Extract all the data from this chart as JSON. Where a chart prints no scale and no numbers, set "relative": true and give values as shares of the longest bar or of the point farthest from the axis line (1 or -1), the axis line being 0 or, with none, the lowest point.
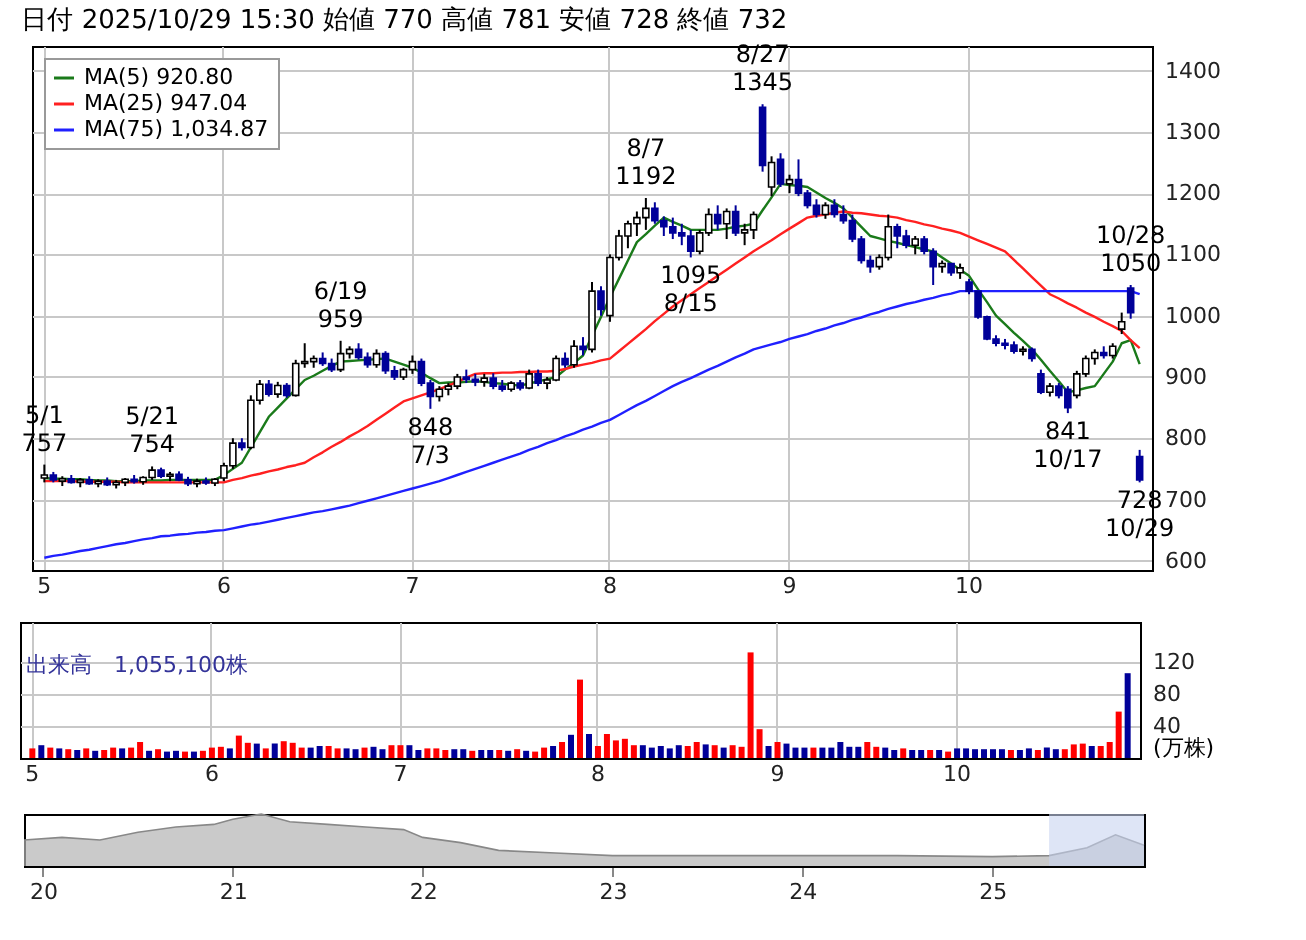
{
  "chart_data": [
    {
      "type": "candlestick",
      "title": "日付 2025/10/29 15:30 始値 770 高値 781 安値 728 終値 732",
      "grid": true,
      "legend": "top left",
      "categories": [
        "5",
        null,
        null,
        null,
        null,
        null,
        null,
        null,
        null,
        null,
        null,
        null,
        null,
        null,
        null,
        null,
        null,
        null,
        null,
        null,
        "6",
        null,
        null,
        null,
        null,
        null,
        null,
        null,
        null,
        null,
        null,
        null,
        null,
        null,
        null,
        null,
        null,
        null,
        null,
        null,
        null,
        "7",
        null,
        null,
        null,
        null,
        null,
        null,
        null,
        null,
        null,
        null,
        null,
        null,
        null,
        null,
        null,
        null,
        null,
        null,
        null,
        null,
        null,
        "8",
        null,
        null,
        null,
        null,
        null,
        null,
        null,
        null,
        null,
        null,
        null,
        null,
        null,
        null,
        null,
        null,
        null,
        null,
        null,
        "9",
        null,
        null,
        null,
        null,
        null,
        null,
        null,
        null,
        null,
        null,
        null,
        null,
        null,
        null,
        null,
        null,
        null,
        null,
        null,
        "10",
        null,
        null,
        null,
        null,
        null,
        null,
        null,
        null,
        null,
        null,
        null,
        null,
        null,
        null,
        null,
        null,
        null,
        null,
        null
      ],
      "ohlc": [
        [
          735,
          757,
          728,
          740
        ],
        [
          740,
          745,
          728,
          732
        ],
        [
          730,
          738,
          722,
          734
        ],
        [
          734,
          740,
          726,
          728
        ],
        [
          728,
          735,
          720,
          732
        ],
        [
          732,
          738,
          724,
          726
        ],
        [
          726,
          733,
          720,
          730
        ],
        [
          730,
          736,
          722,
          724
        ],
        [
          724,
          732,
          718,
          728
        ],
        [
          728,
          735,
          722,
          733
        ],
        [
          733,
          740,
          726,
          729
        ],
        [
          729,
          738,
          724,
          736
        ],
        [
          736,
          754,
          732,
          748
        ],
        [
          748,
          752,
          735,
          738
        ],
        [
          738,
          745,
          730,
          741
        ],
        [
          741,
          746,
          730,
          732
        ],
        [
          732,
          737,
          722,
          726
        ],
        [
          726,
          734,
          720,
          730
        ],
        [
          730,
          736,
          724,
          727
        ],
        [
          727,
          735,
          722,
          733
        ],
        [
          735,
          760,
          730,
          755
        ],
        [
          755,
          800,
          750,
          792
        ],
        [
          792,
          800,
          780,
          785
        ],
        [
          785,
          870,
          782,
          862
        ],
        [
          862,
          895,
          855,
          888
        ],
        [
          888,
          895,
          868,
          872
        ],
        [
          872,
          892,
          866,
          886
        ],
        [
          886,
          890,
          866,
          870
        ],
        [
          870,
          928,
          868,
          922
        ],
        [
          922,
          955,
          915,
          925
        ],
        [
          925,
          935,
          915,
          930
        ],
        [
          930,
          940,
          918,
          922
        ],
        [
          922,
          930,
          908,
          912
        ],
        [
          912,
          959,
          908,
          938
        ],
        [
          938,
          950,
          930,
          945
        ],
        [
          945,
          955,
          928,
          932
        ],
        [
          932,
          940,
          915,
          920
        ],
        [
          920,
          945,
          915,
          938
        ],
        [
          938,
          942,
          905,
          910
        ],
        [
          910,
          918,
          895,
          900
        ],
        [
          900,
          915,
          895,
          912
        ],
        [
          912,
          935,
          905,
          925
        ],
        [
          925,
          930,
          885,
          890
        ],
        [
          890,
          895,
          848,
          868
        ],
        [
          868,
          885,
          860,
          880
        ],
        [
          880,
          890,
          870,
          885
        ],
        [
          885,
          905,
          880,
          900
        ],
        [
          900,
          912,
          890,
          896
        ],
        [
          896,
          905,
          885,
          892
        ],
        [
          892,
          905,
          884,
          898
        ],
        [
          898,
          906,
          880,
          885
        ],
        [
          885,
          895,
          876,
          880
        ],
        [
          880,
          893,
          876,
          890
        ],
        [
          890,
          895,
          878,
          882
        ],
        [
          882,
          912,
          880,
          905
        ],
        [
          905,
          912,
          885,
          890
        ],
        [
          890,
          900,
          880,
          895
        ],
        [
          895,
          935,
          893,
          930
        ],
        [
          930,
          940,
          915,
          920
        ],
        [
          920,
          960,
          915,
          950
        ],
        [
          950,
          965,
          935,
          945
        ],
        [
          945,
          1055,
          940,
          1040
        ],
        [
          1040,
          1048,
          1000,
          1010
        ],
        [
          1000,
          1100,
          990,
          1095
        ],
        [
          1095,
          1140,
          1090,
          1130
        ],
        [
          1130,
          1155,
          1110,
          1150
        ],
        [
          1150,
          1170,
          1130,
          1160
        ],
        [
          1160,
          1192,
          1140,
          1175
        ],
        [
          1175,
          1185,
          1150,
          1155
        ],
        [
          1155,
          1162,
          1130,
          1145
        ],
        [
          1145,
          1160,
          1125,
          1135
        ],
        [
          1135,
          1150,
          1115,
          1130
        ],
        [
          1130,
          1140,
          1095,
          1105
        ],
        [
          1105,
          1140,
          1100,
          1135
        ],
        [
          1135,
          1175,
          1130,
          1165
        ],
        [
          1165,
          1180,
          1140,
          1150
        ],
        [
          1150,
          1175,
          1125,
          1170
        ],
        [
          1170,
          1180,
          1130,
          1135
        ],
        [
          1135,
          1150,
          1115,
          1140
        ],
        [
          1140,
          1170,
          1125,
          1165
        ],
        [
          1340,
          1345,
          1235,
          1245
        ],
        [
          1210,
          1260,
          1195,
          1250
        ],
        [
          1255,
          1265,
          1210,
          1215
        ],
        [
          1215,
          1230,
          1200,
          1222
        ],
        [
          1222,
          1255,
          1195,
          1200
        ],
        [
          1200,
          1205,
          1175,
          1180
        ],
        [
          1180,
          1190,
          1160,
          1165
        ],
        [
          1165,
          1185,
          1158,
          1180
        ],
        [
          1180,
          1190,
          1160,
          1165
        ],
        [
          1165,
          1180,
          1150,
          1155
        ],
        [
          1155,
          1165,
          1120,
          1125
        ],
        [
          1125,
          1130,
          1085,
          1090
        ],
        [
          1090,
          1098,
          1070,
          1080
        ],
        [
          1080,
          1100,
          1075,
          1095
        ],
        [
          1095,
          1165,
          1090,
          1145
        ],
        [
          1145,
          1150,
          1110,
          1130
        ],
        [
          1130,
          1140,
          1110,
          1115
        ],
        [
          1115,
          1130,
          1100,
          1125
        ],
        [
          1125,
          1130,
          1100,
          1105
        ],
        [
          1105,
          1110,
          1050,
          1080
        ],
        [
          1080,
          1090,
          1070,
          1085
        ],
        [
          1085,
          1085,
          1065,
          1070
        ],
        [
          1070,
          1085,
          1060,
          1078
        ],
        [
          1055,
          1060,
          1035,
          1040
        ],
        [
          1040,
          1040,
          995,
          998
        ],
        [
          998,
          1000,
          960,
          962
        ],
        [
          962,
          968,
          950,
          955
        ],
        [
          955,
          962,
          945,
          952
        ],
        [
          952,
          958,
          938,
          942
        ],
        [
          942,
          950,
          935,
          945
        ],
        [
          945,
          948,
          925,
          930
        ],
        [
          905,
          912,
          872,
          875
        ],
        [
          875,
          890,
          868,
          885
        ],
        [
          885,
          890,
          865,
          870
        ],
        [
          880,
          885,
          841,
          850
        ],
        [
          870,
          910,
          865,
          905
        ],
        [
          905,
          935,
          900,
          930
        ],
        [
          930,
          945,
          920,
          940
        ],
        [
          940,
          950,
          930,
          935
        ],
        [
          935,
          955,
          930,
          950
        ],
        [
          978,
          1005,
          970,
          990
        ],
        [
          1045,
          1050,
          995,
          1005
        ],
        [
          770,
          781,
          728,
          732
        ]
      ],
      "ylim": [
        585,
        1440
      ],
      "yticks": [
        600,
        700,
        800,
        900,
        1000,
        1100,
        1200,
        1300,
        1400
      ],
      "series": [
        {
          "type": "line",
          "name": "MA(5) 920.80",
          "color": "#1a7a1a",
          "values": [
            735,
            734,
            734,
            733,
            733,
            732,
            731,
            731,
            730,
            730,
            730,
            731,
            731,
            731,
            732,
            732,
            732,
            732,
            732,
            732,
            740,
            750,
            760,
            785,
            810,
            835,
            850,
            865,
            880,
            895,
            902,
            910,
            918,
            925,
            926,
            927,
            928,
            929,
            930,
            925,
            920,
            915,
            907,
            898,
            890,
            891,
            891,
            892,
            893,
            892,
            890,
            889,
            887,
            886,
            889,
            893,
            896,
            900,
            912,
            923,
            935,
            967,
            998,
            1030,
            1060,
            1090,
            1120,
            1133,
            1147,
            1160,
            1153,
            1147,
            1140,
            1140,
            1140,
            1140,
            1142,
            1145,
            1147,
            1150,
            1172,
            1193,
            1215,
            1213,
            1212,
            1210,
            1201,
            1192,
            1184,
            1175,
            1160,
            1145,
            1130,
            1126,
            1122,
            1119,
            1115,
            1112,
            1108,
            1105,
            1095,
            1085,
            1075,
            1065,
            1043,
            1022,
            1000,
            986,
            972,
            959,
            945,
            928,
            910,
            893,
            875,
            878,
            882,
            885,
            905,
            925,
            955,
            960,
            921
          ]
        },
        {
          "type": "line",
          "name": "MA(25) 947.04",
          "color": "#ff2020",
          "values": [
            730,
            730,
            730,
            730,
            729,
            729,
            729,
            729,
            729,
            728,
            728,
            728,
            728,
            728,
            728,
            728,
            728,
            728,
            728,
            728,
            728,
            732,
            735,
            739,
            742,
            746,
            749,
            753,
            756,
            760,
            769,
            777,
            786,
            794,
            803,
            811,
            820,
            830,
            840,
            850,
            860,
            865,
            870,
            875,
            880,
            886,
            892,
            899,
            905,
            906,
            906,
            907,
            907,
            908,
            908,
            909,
            909,
            910,
            913,
            917,
            920,
            923,
            927,
            930,
            942,
            954,
            966,
            978,
            991,
            1003,
            1015,
            1025,
            1035,
            1045,
            1055,
            1065,
            1075,
            1085,
            1095,
            1105,
            1114,
            1123,
            1133,
            1142,
            1151,
            1160,
            1163,
            1165,
            1168,
            1170,
            1168,
            1167,
            1165,
            1163,
            1162,
            1160,
            1156,
            1153,
            1149,
            1146,
            1142,
            1139,
            1135,
            1129,
            1123,
            1117,
            1111,
            1105,
            1091,
            1077,
            1063,
            1049,
            1035,
            1028,
            1020,
            1013,
            1005,
            998,
            990,
            983,
            975,
            960,
            947
          ]
        },
        {
          "type": "line",
          "name": "MA(75) 1,034.87",
          "color": "#2020ff",
          "values": [
            605,
            608,
            610,
            613,
            616,
            618,
            621,
            624,
            627,
            629,
            632,
            635,
            637,
            640,
            641,
            643,
            644,
            646,
            647,
            649,
            650,
            653,
            656,
            659,
            661,
            664,
            667,
            670,
            673,
            676,
            679,
            681,
            684,
            687,
            690,
            694,
            698,
            702,
            706,
            710,
            714,
            718,
            722,
            726,
            730,
            735,
            740,
            745,
            750,
            755,
            760,
            765,
            770,
            775,
            781,
            786,
            792,
            797,
            803,
            808,
            814,
            819,
            825,
            830,
            838,
            846,
            854,
            861,
            869,
            877,
            885,
            892,
            898,
            905,
            912,
            918,
            925,
            932,
            938,
            945,
            949,
            953,
            957,
            962,
            966,
            970,
            975,
            979,
            984,
            988,
            993,
            997,
            1002,
            1006,
            1011,
            1015,
            1019,
            1022,
            1026,
            1029,
            1033,
            1036,
            1040,
            1040,
            1040,
            1040,
            1040,
            1040,
            1040,
            1040,
            1040,
            1040,
            1040,
            1040,
            1040,
            1040,
            1040,
            1040,
            1040,
            1040,
            1040,
            1040,
            1035
          ]
        }
      ],
      "annotations": [
        {
          "text": "5/1\n757",
          "y": 757
        },
        {
          "text": "5/21\n754",
          "y": 754
        },
        {
          "text": "6/19\n959",
          "y": 959
        },
        {
          "text": "848\n7/3",
          "y": 848
        },
        {
          "text": "8/7\n1192",
          "y": 1192
        },
        {
          "text": "1095\n8/15",
          "y": 1095
        },
        {
          "text": "8/27\n1345",
          "y": 1345
        },
        {
          "text": "841\n10/17",
          "y": 841
        },
        {
          "text": "10/28\n1050",
          "y": 1050
        },
        {
          "text": "728\n10/29",
          "y": 728
        }
      ]
    },
    {
      "type": "bar",
      "grid": true,
      "ylabel": "(万株)",
      "annotations": [
        "出来高　1,055,100株"
      ],
      "ylim": [
        0,
        170
      ],
      "yticks": [
        40,
        80,
        120
      ],
      "categories": [
        "5",
        null,
        null,
        null,
        null,
        null,
        null,
        null,
        null,
        null,
        null,
        null,
        null,
        null,
        null,
        null,
        null,
        null,
        null,
        null,
        "6",
        null,
        null,
        null,
        null,
        null,
        null,
        null,
        null,
        null,
        null,
        null,
        null,
        null,
        null,
        null,
        null,
        null,
        null,
        null,
        null,
        "7",
        null,
        null,
        null,
        null,
        null,
        null,
        null,
        null,
        null,
        null,
        null,
        null,
        null,
        null,
        null,
        null,
        null,
        null,
        null,
        null,
        null,
        "8",
        null,
        null,
        null,
        null,
        null,
        null,
        null,
        null,
        null,
        null,
        null,
        null,
        null,
        null,
        null,
        null,
        null,
        null,
        null,
        "9",
        null,
        null,
        null,
        null,
        null,
        null,
        null,
        null,
        null,
        null,
        null,
        null,
        null,
        null,
        null,
        null,
        null,
        null,
        null,
        "10",
        null,
        null,
        null,
        null,
        null,
        null,
        null,
        null,
        null,
        null,
        null,
        null,
        null,
        null,
        null,
        null,
        null,
        null,
        null
      ],
      "values": [
        12,
        16,
        13,
        12,
        11,
        10,
        12,
        9,
        10,
        13,
        12,
        13,
        20,
        9,
        11,
        8,
        9,
        8,
        8,
        9,
        13,
        14,
        12,
        28,
        19,
        18,
        12,
        18,
        21,
        19,
        13,
        13,
        15,
        15,
        12,
        12,
        11,
        13,
        14,
        11,
        16,
        16,
        16,
        10,
        12,
        12,
        10,
        11,
        11,
        9,
        10,
        10,
        10,
        9,
        11,
        9,
        8,
        13,
        15,
        20,
        29,
        98,
        30,
        15,
        30,
        22,
        24,
        16,
        16,
        13,
        15,
        12,
        16,
        15,
        20,
        17,
        16,
        13,
        16,
        14,
        132,
        36,
        15,
        20,
        18,
        13,
        13,
        13,
        13,
        13,
        20,
        14,
        14,
        20,
        14,
        13,
        10,
        12,
        10,
        10,
        10,
        10,
        8,
        12,
        12,
        11,
        11,
        11,
        11,
        10,
        10,
        12,
        10,
        13,
        11,
        11,
        17,
        18,
        15,
        15,
        20,
        58,
        106
      ],
      "colors": [
        "#ff0000",
        "#000099",
        "#ff0000",
        "#000099",
        "#ff0000",
        "#000099",
        "#ff0000",
        "#000099",
        "#ff0000",
        "#ff0000",
        "#000099",
        "#ff0000",
        "#ff0000",
        "#000099",
        "#ff0000",
        "#000099",
        "#000099",
        "#ff0000",
        "#000099",
        "#ff0000",
        "#ff0000",
        "#ff0000",
        "#000099",
        "#ff0000",
        "#ff0000",
        "#000099",
        "#ff0000",
        "#000099",
        "#ff0000",
        "#ff0000",
        "#ff0000",
        "#000099",
        "#000099",
        "#ff0000",
        "#ff0000",
        "#000099",
        "#000099",
        "#ff0000",
        "#000099",
        "#000099",
        "#ff0000",
        "#ff0000",
        "#000099",
        "#000099",
        "#ff0000",
        "#ff0000",
        "#ff0000",
        "#000099",
        "#000099",
        "#ff0000",
        "#000099",
        "#000099",
        "#ff0000",
        "#000099",
        "#ff0000",
        "#000099",
        "#ff0000",
        "#ff0000",
        "#000099",
        "#ff0000",
        "#000099",
        "#ff0000",
        "#000099",
        "#ff0000",
        "#ff0000",
        "#ff0000",
        "#ff0000",
        "#ff0000",
        "#000099",
        "#000099",
        "#000099",
        "#000099",
        "#000099",
        "#ff0000",
        "#ff0000",
        "#000099",
        "#ff0000",
        "#000099",
        "#ff0000",
        "#ff0000",
        "#ff0000",
        "#ff0000",
        "#000099",
        "#ff0000",
        "#000099",
        "#000099",
        "#000099",
        "#ff0000",
        "#000099",
        "#000099",
        "#000099",
        "#000099",
        "#000099",
        "#ff0000",
        "#ff0000",
        "#000099",
        "#000099",
        "#ff0000",
        "#000099",
        "#000099",
        "#ff0000",
        "#000099",
        "#ff0000",
        "#000099",
        "#000099",
        "#000099",
        "#000099",
        "#000099",
        "#000099",
        "#ff0000",
        "#000099",
        "#000099",
        "#ff0000",
        "#000099",
        "#000099",
        "#ff0000",
        "#ff0000",
        "#ff0000",
        "#000099",
        "#ff0000",
        "#ff0000",
        "#ff0000",
        "#000099"
      ]
    },
    {
      "type": "area",
      "relative": true,
      "color": "#b4b4b4",
      "xlim": [
        2019.9,
        2025.8
      ],
      "xticks": [
        {
          "value": 2020,
          "label": "20"
        },
        {
          "value": 2021,
          "label": "21"
        },
        {
          "value": 2022,
          "label": "22"
        },
        {
          "value": 2023,
          "label": "23"
        },
        {
          "value": 2024,
          "label": "24"
        },
        {
          "value": 2025,
          "label": "25"
        }
      ],
      "x": [
        2019.9,
        2020.1,
        2020.3,
        2020.5,
        2020.7,
        2020.9,
        2021.0,
        2021.15,
        2021.3,
        2021.5,
        2021.7,
        2021.9,
        2022.0,
        2022.2,
        2022.4,
        2022.7,
        2023.0,
        2023.5,
        2024.0,
        2024.5,
        2025.0,
        2025.3,
        2025.5,
        2025.65,
        2025.8
      ],
      "values": [
        0.5,
        0.55,
        0.5,
        0.65,
        0.75,
        0.8,
        0.9,
        1,
        0.85,
        0.8,
        0.75,
        0.7,
        0.55,
        0.45,
        0.3,
        0.25,
        0.2,
        0.2,
        0.2,
        0.2,
        0.18,
        0.2,
        0.35,
        0.6,
        0.4
      ],
      "bands": [
        {
          "axis": "x",
          "from": 2025.3,
          "to": 2025.8,
          "color": "#c8d4f0"
        }
      ]
    }
  ]
}
